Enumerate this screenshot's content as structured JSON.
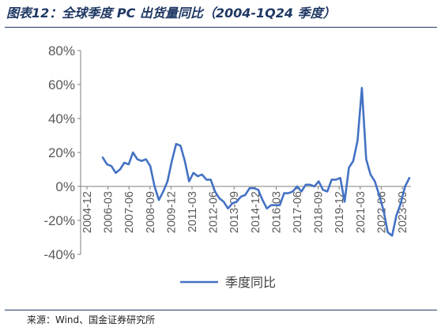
{
  "header": {
    "title": "图表12：全球季度 PC 出货量同比（2004-1Q24 季度）"
  },
  "footer": {
    "source": "来源：Wind、国金证券研究所"
  },
  "chart_data": {
    "type": "line",
    "title": "图表12：全球季度 PC 出货量同比（2004-1Q24 季度）",
    "xlabel": "",
    "ylabel": "",
    "ylim": [
      -40,
      80
    ],
    "yticks": [
      "80%",
      "60%",
      "40%",
      "20%",
      "0%",
      "-20%",
      "-40%"
    ],
    "ytick_values": [
      80,
      60,
      40,
      20,
      0,
      -20,
      -40
    ],
    "xtick_labels": [
      "2004-12",
      "2006-03",
      "2007-06",
      "2008-09",
      "2009-12",
      "2011-03",
      "2012-06",
      "2013-09",
      "2014-12",
      "2016-03",
      "2017-06",
      "2018-09",
      "2019-12",
      "2021-03",
      "2022-06",
      "2023-09"
    ],
    "legend_position": "bottom-center",
    "grid": false,
    "line_color": "#4472c4",
    "series": [
      {
        "name": "季度同比",
        "values": [
          17,
          13,
          12,
          8,
          10,
          14,
          13,
          20,
          16,
          15,
          16,
          12,
          0,
          -8,
          -3,
          3,
          15,
          25,
          24,
          15,
          3,
          8,
          6,
          7,
          4,
          4,
          -3,
          -7,
          -9,
          -13,
          -10,
          -9,
          -6,
          -5,
          -1,
          -1,
          -2,
          -8,
          -13,
          -11,
          -11,
          -11,
          -4,
          -4,
          -3,
          0,
          -3,
          1,
          1,
          0,
          3,
          -2,
          -3,
          4,
          4,
          5,
          -9,
          11,
          15,
          27,
          58,
          16,
          7,
          3,
          -5,
          -14,
          -27,
          -29,
          -17,
          -10,
          0,
          5
        ]
      }
    ]
  }
}
